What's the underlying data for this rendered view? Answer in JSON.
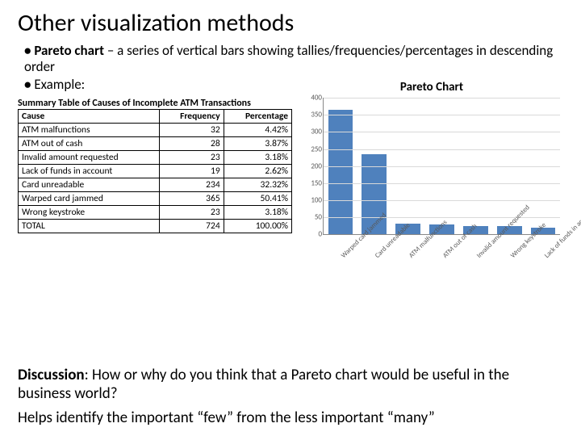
{
  "title": "Other visualization methods",
  "bullets": [
    {
      "bold_lead": "Pareto chart",
      "rest": " – a series of vertical bars showing tallies/frequencies/percentages in descending order"
    },
    {
      "bold_lead": "",
      "rest": "Example:"
    }
  ],
  "chart_title_right": "Pareto Chart",
  "table": {
    "title": "Summary Table of Causes of Incomplete ATM Transactions",
    "columns": [
      "Cause",
      "Frequency",
      "Percentage"
    ],
    "rows": [
      [
        "ATM malfunctions",
        "32",
        "4.42%"
      ],
      [
        "ATM out of cash",
        "28",
        "3.87%"
      ],
      [
        "Invalid amount requested",
        "23",
        "3.18%"
      ],
      [
        "Lack of funds in account",
        "19",
        "2.62%"
      ],
      [
        "Card unreadable",
        "234",
        "32.32%"
      ],
      [
        "Warped card jammed",
        "365",
        "50.41%"
      ],
      [
        "Wrong keystroke",
        "23",
        "3.18%"
      ],
      [
        "TOTAL",
        "724",
        "100.00%"
      ]
    ]
  },
  "chart": {
    "type": "bar",
    "ylim": [
      0,
      400
    ],
    "ytick_step": 50,
    "yticks": [
      "0",
      "50",
      "100",
      "150",
      "200",
      "250",
      "300",
      "350",
      "400"
    ],
    "grid_color": "#d9d9d9",
    "axis_color": "#888888",
    "bar_color": "#4f81bd",
    "tick_font_color": "#595959",
    "categories": [
      "Warped card jammed",
      "Card unreadable",
      "ATM malfunctions",
      "ATM out of cash",
      "Invalid amount requested",
      "Wrong keystroke",
      "Lack of funds in account"
    ],
    "values": [
      365,
      234,
      32,
      28,
      23,
      23,
      19
    ]
  },
  "discussion": {
    "prefix": "Discussion",
    "text": ": How or why do you think that a Pareto chart would be useful in the business world?"
  },
  "helper": "Helps identify the important “few” from the less important “many”"
}
